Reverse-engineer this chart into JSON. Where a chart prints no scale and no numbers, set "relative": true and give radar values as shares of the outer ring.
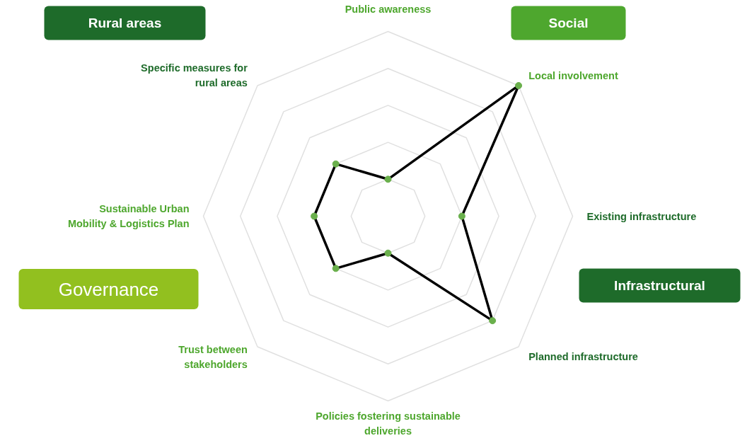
{
  "chart_data": {
    "type": "radar",
    "relative": true,
    "grid": true,
    "marker": "circle",
    "line_style": "solid",
    "categories": [
      "Public awareness",
      "Local involvement",
      "Existing infrastructure",
      "Planned infrastructure",
      "Policies fostering sustainable\ndeliveries",
      "Trust between\nstakeholders",
      "Sustainable Urban\nMobility & Logistics Plan",
      "Specific measures for\nrural areas"
    ],
    "series": [
      {
        "color": "#000000",
        "values": [
          0.2,
          1.0,
          0.4,
          0.8,
          0.2,
          0.4,
          0.4,
          0.4
        ]
      }
    ],
    "annotations": [
      "Rural areas",
      "Social",
      "Infrastructural",
      "Governance"
    ]
  }
}
